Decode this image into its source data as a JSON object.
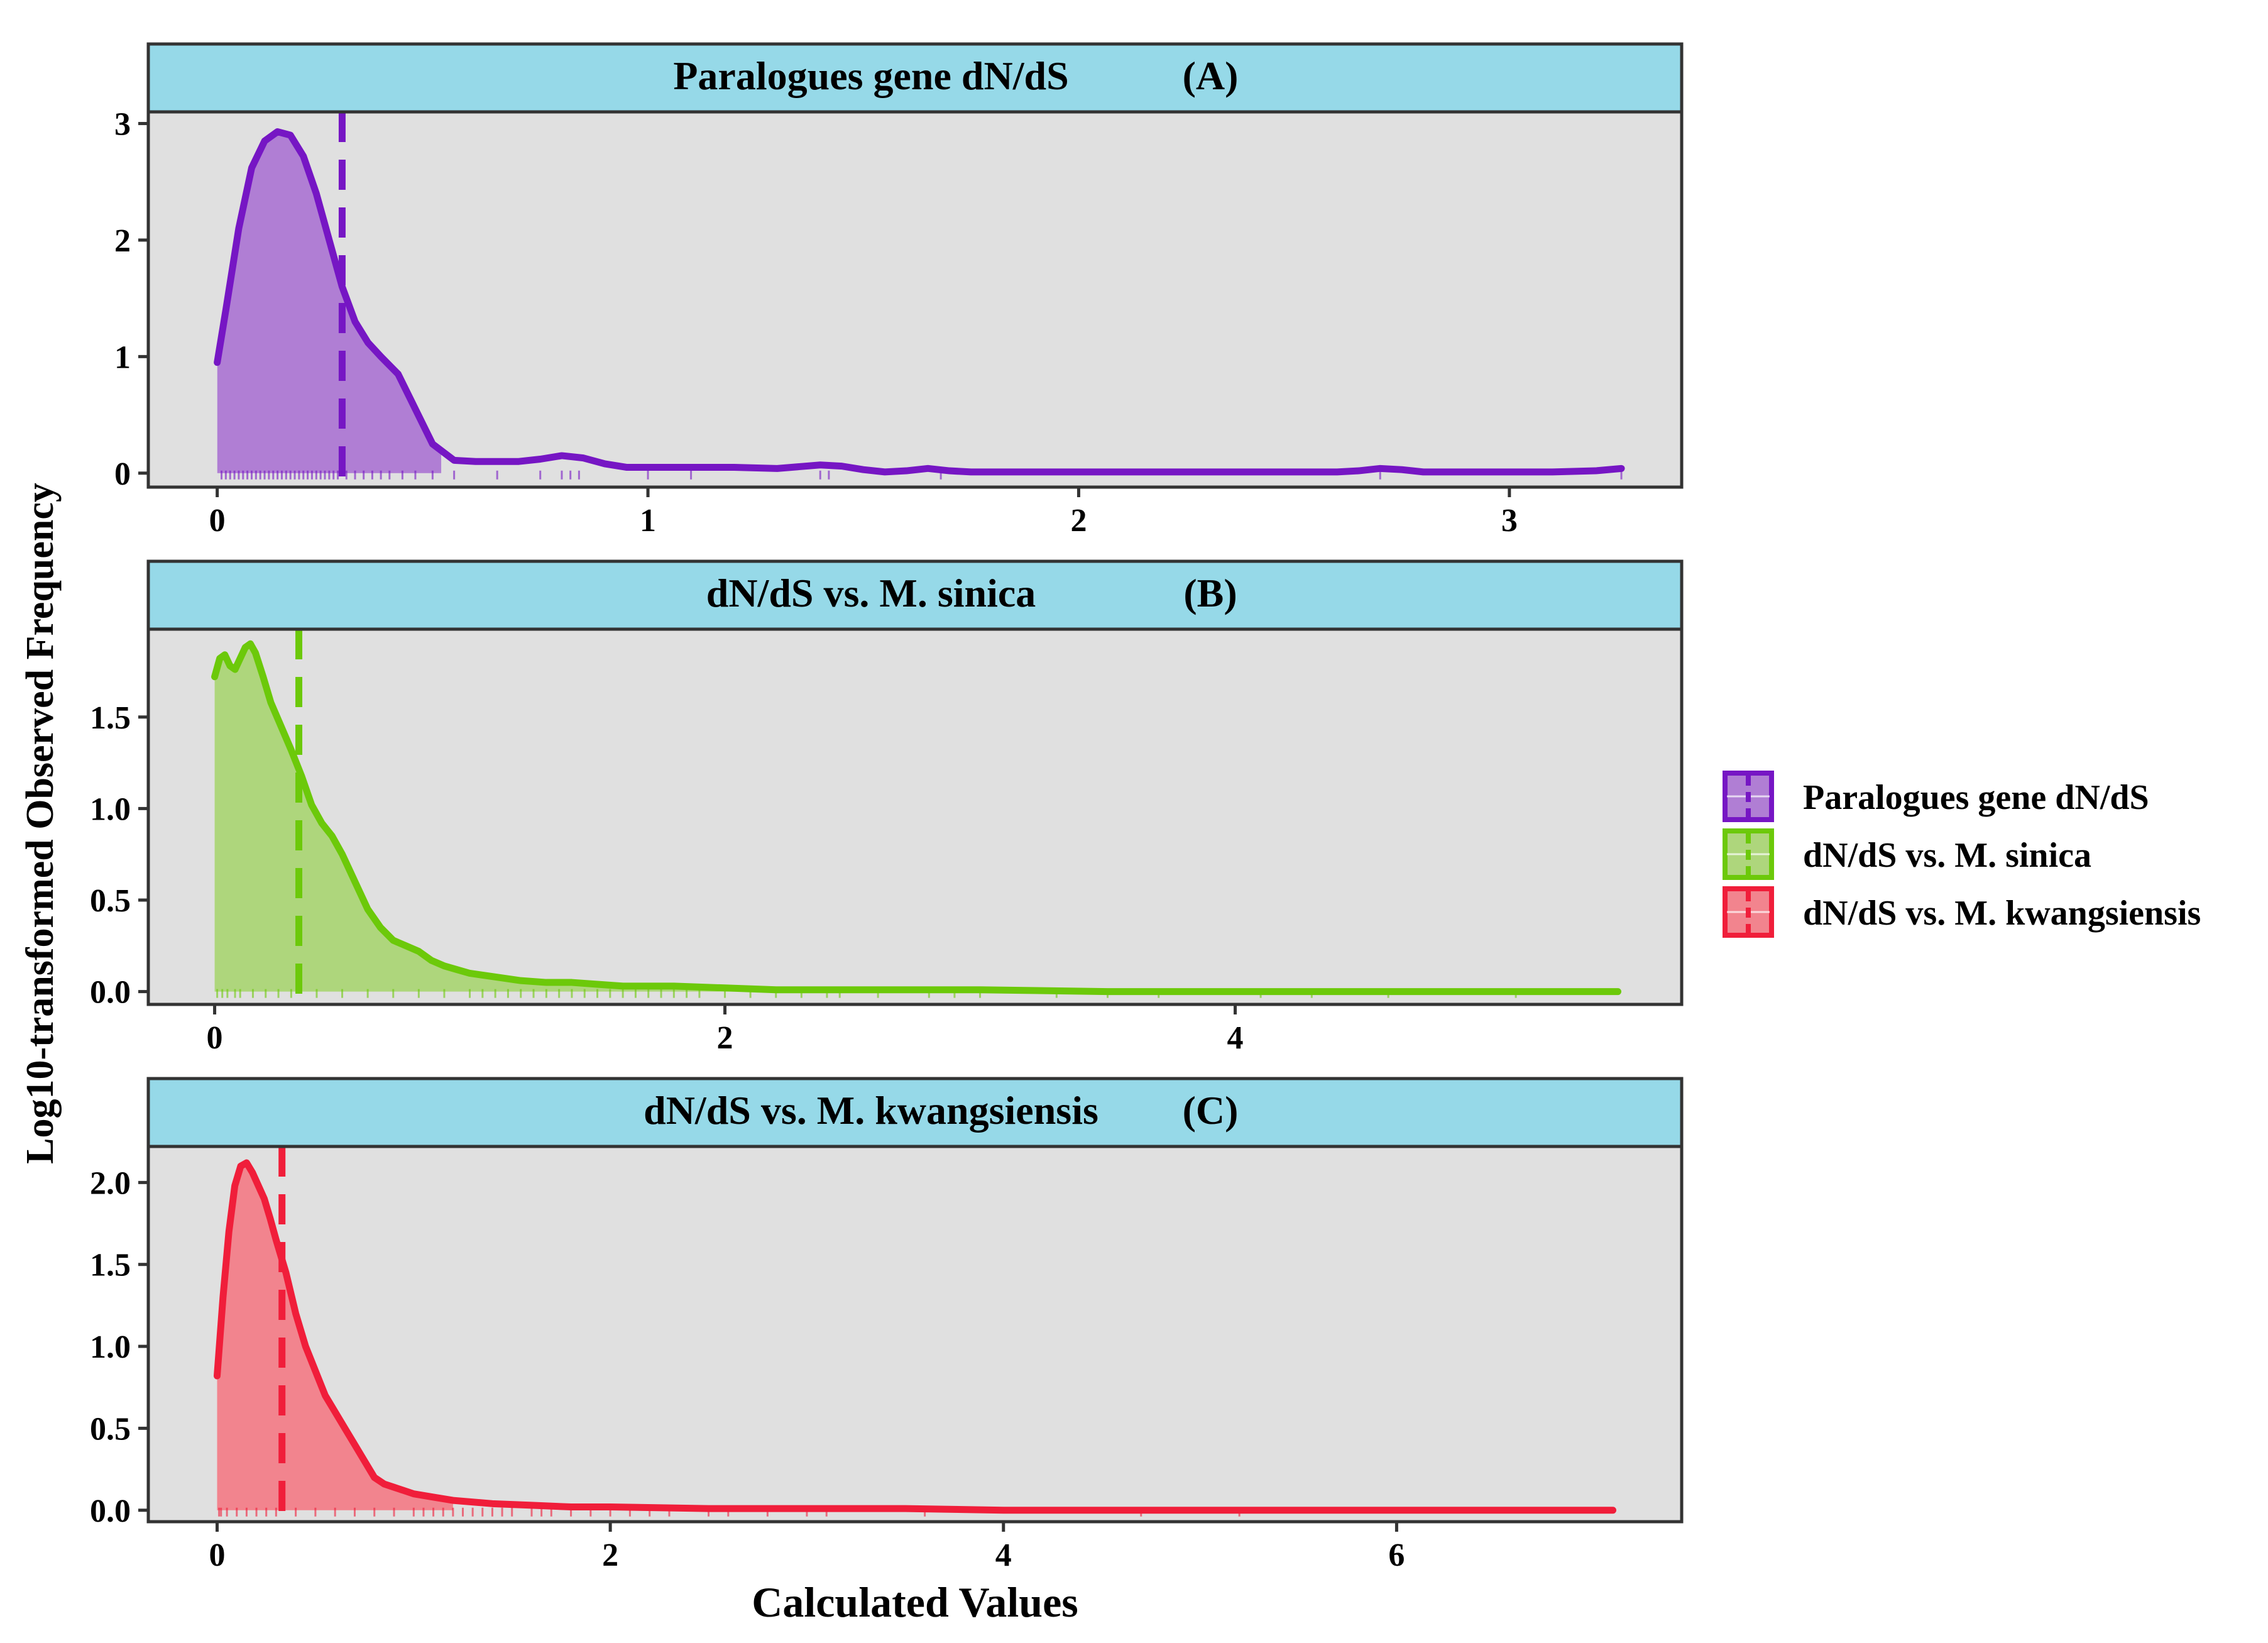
{
  "chart_data": {
    "type": "density",
    "ylabel": "Log10-transformed Observed Frequency",
    "xlabel": "Calculated Values",
    "background_color": "#e0e0e0",
    "strip_color": "#96d9e8",
    "legend": {
      "placement": "right",
      "items": [
        {
          "label": "Paralogues gene dN/dS",
          "color": "#7616c4"
        },
        {
          "label": "dN/dS vs. M. sinica",
          "color": "#6cc90a"
        },
        {
          "label": "dN/dS vs. M. kwangsiensis",
          "color": "#f01e3a"
        }
      ]
    },
    "panels": [
      {
        "id": "A",
        "title": "Paralogues gene dN/dS",
        "tag": "(A)",
        "color": "#7616c4",
        "fill": "#b07ed4",
        "xlim": [
          -0.16,
          3.4
        ],
        "ylim": [
          -0.12,
          3.1
        ],
        "xticks": [
          0,
          1,
          2,
          3
        ],
        "xtick_labels": [
          "0",
          "1",
          "2",
          "3"
        ],
        "yticks": [
          0,
          1,
          2,
          3
        ],
        "ytick_labels": [
          "0",
          "1",
          "2",
          "3"
        ],
        "mean_line": 0.29,
        "fill_end": 0.52,
        "x": [
          0,
          0.02,
          0.05,
          0.08,
          0.11,
          0.14,
          0.17,
          0.2,
          0.23,
          0.26,
          0.29,
          0.32,
          0.35,
          0.38,
          0.42,
          0.46,
          0.5,
          0.55,
          0.6,
          0.65,
          0.7,
          0.75,
          0.8,
          0.85,
          0.9,
          0.95,
          1.0,
          1.1,
          1.2,
          1.3,
          1.4,
          1.45,
          1.5,
          1.55,
          1.6,
          1.65,
          1.7,
          1.75,
          1.8,
          2.0,
          2.2,
          2.4,
          2.6,
          2.65,
          2.7,
          2.75,
          2.8,
          3.0,
          3.1,
          3.2,
          3.26
        ],
        "y": [
          0.95,
          1.4,
          2.1,
          2.62,
          2.85,
          2.93,
          2.9,
          2.72,
          2.4,
          2.0,
          1.6,
          1.3,
          1.12,
          1.0,
          0.85,
          0.55,
          0.25,
          0.11,
          0.1,
          0.1,
          0.1,
          0.12,
          0.15,
          0.13,
          0.08,
          0.05,
          0.05,
          0.05,
          0.05,
          0.04,
          0.07,
          0.06,
          0.03,
          0.01,
          0.02,
          0.04,
          0.02,
          0.01,
          0.01,
          0.01,
          0.01,
          0.01,
          0.01,
          0.02,
          0.04,
          0.03,
          0.01,
          0.01,
          0.01,
          0.02,
          0.04
        ],
        "rug": [
          0.01,
          0.02,
          0.03,
          0.04,
          0.05,
          0.06,
          0.07,
          0.08,
          0.09,
          0.1,
          0.11,
          0.12,
          0.13,
          0.14,
          0.15,
          0.16,
          0.17,
          0.18,
          0.19,
          0.2,
          0.21,
          0.22,
          0.23,
          0.24,
          0.25,
          0.26,
          0.27,
          0.28,
          0.3,
          0.32,
          0.34,
          0.36,
          0.38,
          0.4,
          0.43,
          0.46,
          0.5,
          0.55,
          0.65,
          0.75,
          0.8,
          0.82,
          0.84,
          1.0,
          1.1,
          1.4,
          1.42,
          1.68,
          2.7,
          3.26
        ]
      },
      {
        "id": "B",
        "title": "dN/dS vs. M. sinica",
        "tag": "(B)",
        "color": "#6cc90a",
        "fill": "#aed67c",
        "xlim": [
          -0.26,
          5.75
        ],
        "ylim": [
          -0.07,
          1.98
        ],
        "xticks": [
          0,
          2,
          4
        ],
        "xtick_labels": [
          "0",
          "2",
          "4"
        ],
        "yticks": [
          0,
          0.5,
          1.0,
          1.5
        ],
        "ytick_labels": [
          "0.0",
          "0.5",
          "1.0",
          "1.5"
        ],
        "mean_line": 0.33,
        "fill_end": 5.5,
        "x": [
          0,
          0.02,
          0.04,
          0.06,
          0.08,
          0.1,
          0.12,
          0.14,
          0.16,
          0.19,
          0.22,
          0.26,
          0.3,
          0.34,
          0.38,
          0.42,
          0.46,
          0.5,
          0.55,
          0.6,
          0.65,
          0.7,
          0.75,
          0.8,
          0.85,
          0.9,
          0.95,
          1.0,
          1.1,
          1.2,
          1.3,
          1.4,
          1.5,
          1.6,
          1.8,
          2.0,
          2.2,
          2.4,
          2.6,
          2.8,
          3.0,
          3.5,
          4.0,
          4.5,
          5.0,
          5.5
        ],
        "y": [
          1.72,
          1.82,
          1.84,
          1.78,
          1.76,
          1.82,
          1.88,
          1.9,
          1.85,
          1.72,
          1.58,
          1.45,
          1.32,
          1.18,
          1.02,
          0.92,
          0.85,
          0.75,
          0.6,
          0.45,
          0.35,
          0.28,
          0.25,
          0.22,
          0.17,
          0.14,
          0.12,
          0.1,
          0.08,
          0.06,
          0.05,
          0.05,
          0.04,
          0.03,
          0.03,
          0.02,
          0.01,
          0.01,
          0.01,
          0.01,
          0.01,
          0.0,
          0.0,
          0.0,
          0.0,
          0.0
        ],
        "rug": [
          0.01,
          0.03,
          0.05,
          0.08,
          0.1,
          0.15,
          0.2,
          0.25,
          0.3,
          0.4,
          0.5,
          0.6,
          0.7,
          0.8,
          0.9,
          1.0,
          1.05,
          1.1,
          1.15,
          1.2,
          1.25,
          1.3,
          1.35,
          1.4,
          1.45,
          1.5,
          1.55,
          1.6,
          1.65,
          1.7,
          1.75,
          1.8,
          1.85,
          1.9,
          2.0,
          2.1,
          2.2,
          2.3,
          2.4,
          2.45,
          2.6,
          2.8,
          2.9,
          3.0,
          3.3,
          3.5,
          3.7,
          4.1,
          4.3,
          4.6,
          5.1
        ]
      },
      {
        "id": "C",
        "title": "dN/dS vs. M. kwangsiensis",
        "tag": "(C)",
        "color": "#f01e3a",
        "fill": "#f2848e",
        "xlim": [
          -0.35,
          7.45
        ],
        "ylim": [
          -0.07,
          2.22
        ],
        "xticks": [
          0,
          2,
          4,
          6
        ],
        "xtick_labels": [
          "0",
          "2",
          "4",
          "6"
        ],
        "yticks": [
          0,
          0.5,
          1.0,
          1.5,
          2.0
        ],
        "ytick_labels": [
          "0.0",
          "0.5",
          "1.0",
          "1.5",
          "2.0"
        ],
        "mean_line": 0.33,
        "fill_end": 1.2,
        "x": [
          0,
          0.03,
          0.06,
          0.09,
          0.12,
          0.15,
          0.18,
          0.21,
          0.24,
          0.27,
          0.3,
          0.35,
          0.4,
          0.45,
          0.5,
          0.55,
          0.6,
          0.65,
          0.7,
          0.75,
          0.8,
          0.85,
          0.9,
          0.95,
          1.0,
          1.1,
          1.2,
          1.4,
          1.6,
          1.8,
          2.0,
          2.5,
          3.0,
          3.5,
          4.0,
          5.0,
          6.0,
          7.1
        ],
        "y": [
          0.82,
          1.3,
          1.7,
          1.98,
          2.1,
          2.12,
          2.06,
          1.98,
          1.9,
          1.78,
          1.65,
          1.45,
          1.2,
          1.0,
          0.85,
          0.7,
          0.6,
          0.5,
          0.4,
          0.3,
          0.2,
          0.16,
          0.14,
          0.12,
          0.1,
          0.08,
          0.06,
          0.04,
          0.03,
          0.02,
          0.02,
          0.01,
          0.01,
          0.01,
          0.0,
          0.0,
          0.0,
          0.0
        ],
        "rug": [
          0.01,
          0.02,
          0.05,
          0.1,
          0.15,
          0.2,
          0.25,
          0.3,
          0.4,
          0.5,
          0.6,
          0.7,
          0.8,
          0.9,
          1.0,
          1.05,
          1.1,
          1.15,
          1.2,
          1.25,
          1.3,
          1.35,
          1.4,
          1.45,
          1.5,
          1.6,
          1.65,
          1.7,
          1.8,
          1.9,
          2.0,
          2.1,
          2.2,
          2.3,
          2.5,
          2.6,
          2.8,
          3.0,
          3.1,
          3.6,
          4.7,
          5.2
        ]
      }
    ]
  }
}
